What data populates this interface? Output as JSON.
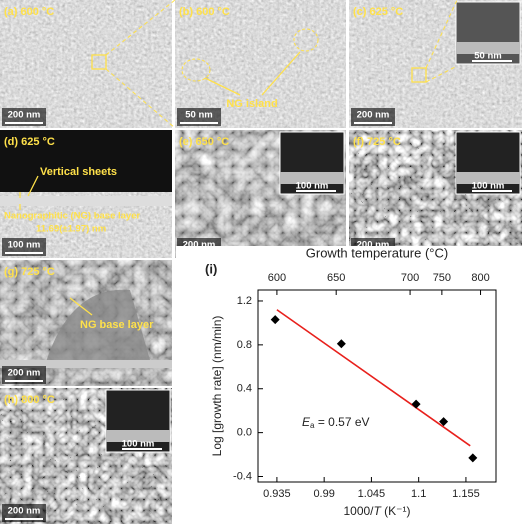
{
  "panels": [
    {
      "label": "(a) 600 °C",
      "scale": "200 nm"
    },
    {
      "label": "(b) 600 °C",
      "notes": [
        "NG island"
      ],
      "scale": "50 nm"
    },
    {
      "label": "(c) 625 °C",
      "inset_scale": "50 nm",
      "scale": "200 nm"
    },
    {
      "label": "(d) 625 °C",
      "notes": [
        "Vertical sheets",
        "Nanographitic (NG) base layer",
        "11.69(±1.97) nm"
      ],
      "scale": "100 nm"
    },
    {
      "label": "(e) 650 °C",
      "inset_scale": "100 nm",
      "scale": "200 nm"
    },
    {
      "label": "(f) 725 °C",
      "inset_scale": "100 nm",
      "scale": "200 nm"
    },
    {
      "label": "(g) 725 °C",
      "notes": [
        "NG base layer"
      ],
      "scale": "200 nm"
    },
    {
      "label": "(h) 800 °C",
      "inset_scale": "100 nm",
      "scale": "200 nm"
    }
  ],
  "chart_data": {
    "type": "scatter",
    "panel_label": "(i)",
    "top_title": "Growth temperature (°C)",
    "x_label": "1000/",
    "x_label_var": "T",
    "x_label_unit": " (K⁻¹)",
    "y_label": "Log [growth rate] (nm/min)",
    "annotation": {
      "symbol": "E",
      "sub": "a",
      "text": "= 0.57 eV"
    },
    "x": [
      0.933,
      1.01,
      1.097,
      1.129,
      1.163
    ],
    "values": [
      1.03,
      0.81,
      0.26,
      0.1,
      -0.23
    ],
    "color": "#000000",
    "fit": {
      "x": [
        0.935,
        1.16
      ],
      "values": [
        1.12,
        -0.12
      ],
      "color": "#e8201c"
    },
    "xlim": [
      0.913,
      1.19
    ],
    "ylim": [
      -0.45,
      1.3
    ],
    "xticks": [
      0.935,
      0.99,
      1.045,
      1.1,
      1.155
    ],
    "x2ticks": [
      {
        "value": 0.935,
        "label": "600"
      },
      {
        "value": 1.004,
        "label": "650"
      },
      {
        "value": 1.09,
        "label": "700"
      },
      {
        "value": 1.127,
        "label": "750"
      },
      {
        "value": 1.172,
        "label": "800"
      }
    ],
    "yticks": [
      {
        "value": 1.2,
        "label": "1.2"
      },
      {
        "value": 0.8,
        "label": "0.8"
      },
      {
        "value": 0.4,
        "label": "0.4"
      },
      {
        "value": 0,
        "label": "0.0"
      },
      {
        "value": -0.4,
        "label": "-0.4"
      }
    ]
  }
}
